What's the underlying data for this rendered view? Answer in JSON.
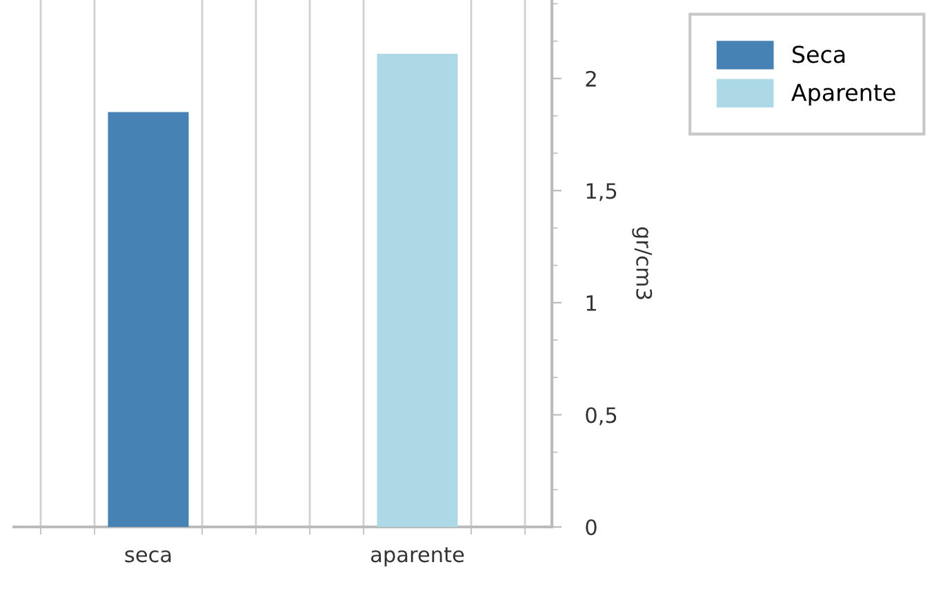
{
  "chart_data": {
    "type": "bar",
    "categories": [
      "seca",
      "aparente"
    ],
    "series": [
      {
        "name": "Seca",
        "color": "#4682b4",
        "values": [
          1.85,
          null
        ]
      },
      {
        "name": "Aparente",
        "color": "#add8e6",
        "values": [
          null,
          2.11
        ]
      }
    ],
    "ylabel": "gr/cm3",
    "ylim": [
      0,
      2.35
    ],
    "yticks": [
      {
        "value": 0,
        "label": "0"
      },
      {
        "value": 0.5,
        "label": "0,5"
      },
      {
        "value": 1,
        "label": "1"
      },
      {
        "value": 1.5,
        "label": "1,5"
      },
      {
        "value": 2,
        "label": "2"
      }
    ],
    "grid": "x",
    "legend": "top right"
  }
}
